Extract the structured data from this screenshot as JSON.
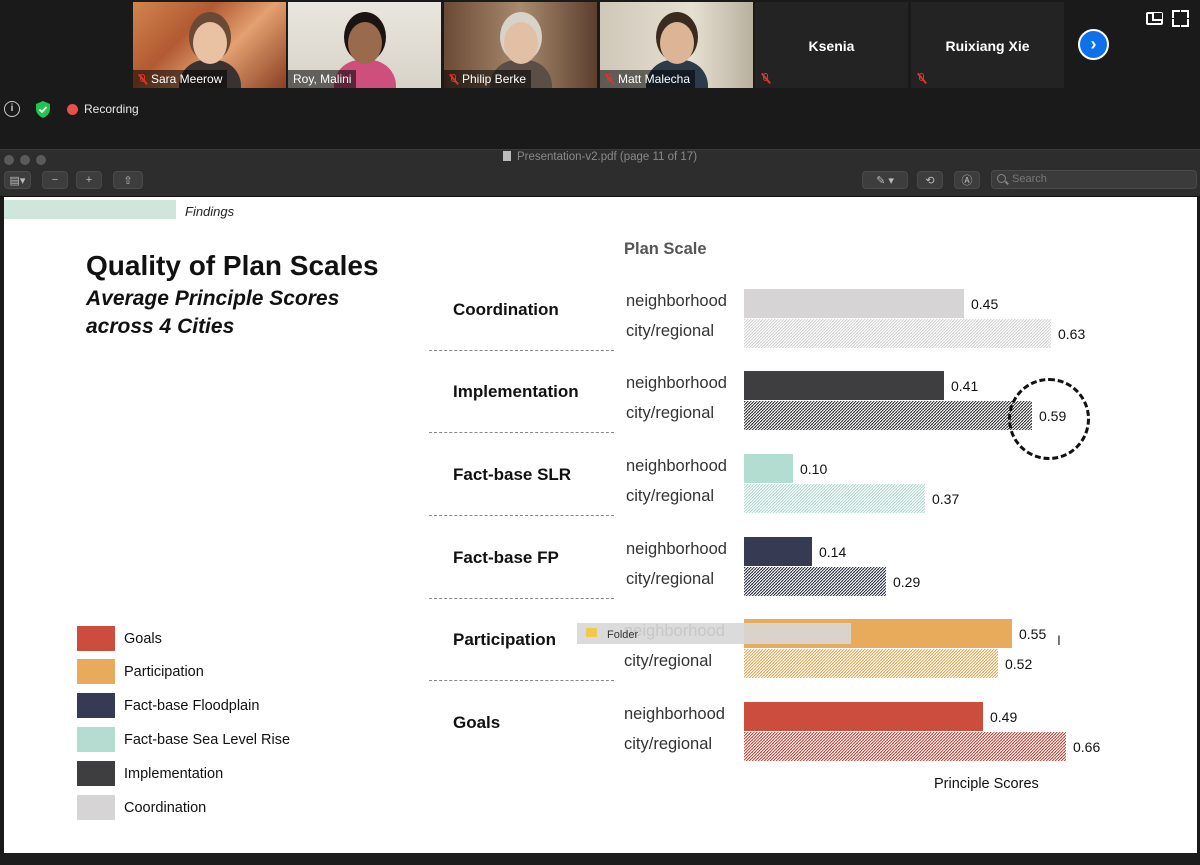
{
  "zoom": {
    "participants": [
      {
        "name": "Sara Meerow",
        "muted": true,
        "has_video": true
      },
      {
        "name": "Roy, Malini",
        "muted": false,
        "has_video": true,
        "active_speaker": true
      },
      {
        "name": "Philip Berke",
        "muted": true,
        "has_video": true
      },
      {
        "name": "Matt Malecha",
        "muted": true,
        "has_video": true
      },
      {
        "name": "Ksenia",
        "muted": true,
        "has_video": false
      },
      {
        "name": "Ruixiang Xie",
        "muted": true,
        "has_video": false
      }
    ],
    "recording_label": "Recording",
    "icons": [
      "info-icon",
      "shield-check-icon",
      "record-icon",
      "next-page-icon",
      "speaker-view-icon",
      "fullscreen-icon"
    ]
  },
  "viewer": {
    "title": "Presentation-v2.pdf (page 11 of 17)",
    "search_placeholder": "Search"
  },
  "slide": {
    "section_tag": "Findings",
    "title": "Quality of Plan Scales",
    "subtitle": "Average Principle Scores across 4 Cities",
    "plan_scale_header": "Plan Scale",
    "xlabel": "Principle Scores",
    "scale_labels": [
      "neighborhood",
      "city/regional"
    ]
  },
  "overlay": {
    "folder_label": "Folder",
    "cursor_glyph": "I"
  },
  "chart_data": {
    "type": "bar",
    "orientation": "horizontal",
    "title": "Quality of Plan Scales",
    "subtitle": "Average Principle Scores across 4 Cities",
    "xlabel": "Principle Scores",
    "categories": [
      "Coordination",
      "Implementation",
      "Fact-base SLR",
      "Fact-base FP",
      "Participation",
      "Goals"
    ],
    "series": [
      {
        "name": "neighborhood",
        "values": [
          0.45,
          0.41,
          0.1,
          0.14,
          0.55,
          0.49
        ]
      },
      {
        "name": "city/regional",
        "values": [
          0.63,
          0.59,
          0.37,
          0.29,
          0.52,
          0.66
        ]
      }
    ],
    "data_labels": [
      [
        "0.45",
        "0.63"
      ],
      [
        "0.41",
        "0.59"
      ],
      [
        "0.10",
        "0.37"
      ],
      [
        "0.14",
        "0.29"
      ],
      [
        "0.55",
        "0.52"
      ],
      [
        "0.49",
        "0.66"
      ]
    ],
    "category_colors": [
      "#d6d4d5",
      "#3e3e40",
      "#b4ddd2",
      "#363a53",
      "#e8ab5b",
      "#cc4c3e"
    ],
    "city_regional_style": "textured",
    "highlighted": {
      "category": "Implementation",
      "series": "city/regional"
    },
    "legend": {
      "position": "bottom-left",
      "items": [
        {
          "label": "Goals",
          "color": "#cc4c3e"
        },
        {
          "label": "Participation",
          "color": "#e8ab5b"
        },
        {
          "label": "Fact-base Floodplain",
          "color": "#363a53"
        },
        {
          "label": "Fact-base Sea Level Rise",
          "color": "#b4ddd2"
        },
        {
          "label": "Implementation",
          "color": "#3e3e40"
        },
        {
          "label": "Coordination",
          "color": "#d6d4d5"
        }
      ]
    },
    "grid": false
  }
}
